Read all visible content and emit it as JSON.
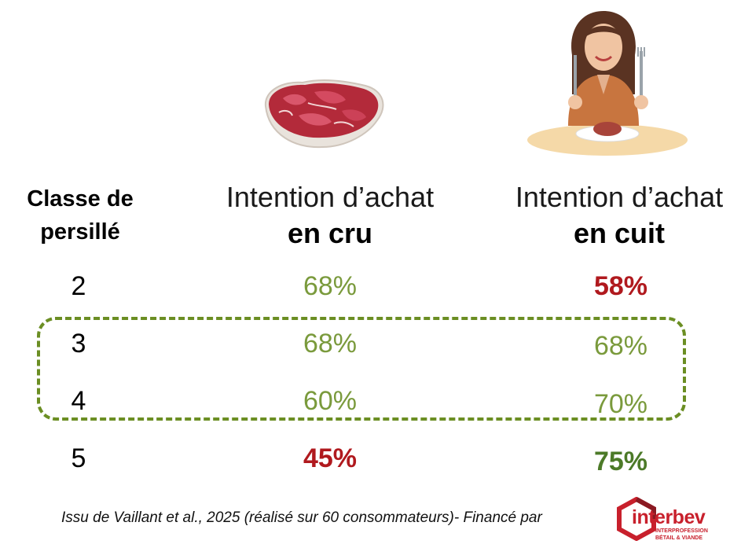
{
  "header": {
    "class_label_line1": "Classe de",
    "class_label_line2": "persillé",
    "raw_title": "Intention d’achat",
    "raw_bold": "en cru",
    "cooked_title": "Intention d’achat",
    "cooked_bold": "en cuit"
  },
  "rows": [
    {
      "classe": "2",
      "cru": "68%",
      "cuit": "58%"
    },
    {
      "classe": "3",
      "cru": "68%",
      "cuit": "68%"
    },
    {
      "classe": "4",
      "cru": "60%",
      "cuit": "70%"
    },
    {
      "classe": "5",
      "cru": "45%",
      "cuit": "75%"
    }
  ],
  "footer": {
    "source": "Issu de Vaillant et al., 2025 (réalisé sur 60 consommateurs)- Financé par",
    "logo_name": "interbev",
    "logo_sub1": "INTERPROFESSION",
    "logo_sub2": "BÉTAIL & VIANDE"
  },
  "colors": {
    "green": "#7a9a3c",
    "red": "#b0191e",
    "dark_green": "#4c7a28",
    "highlight_border": "#6b8e23"
  }
}
